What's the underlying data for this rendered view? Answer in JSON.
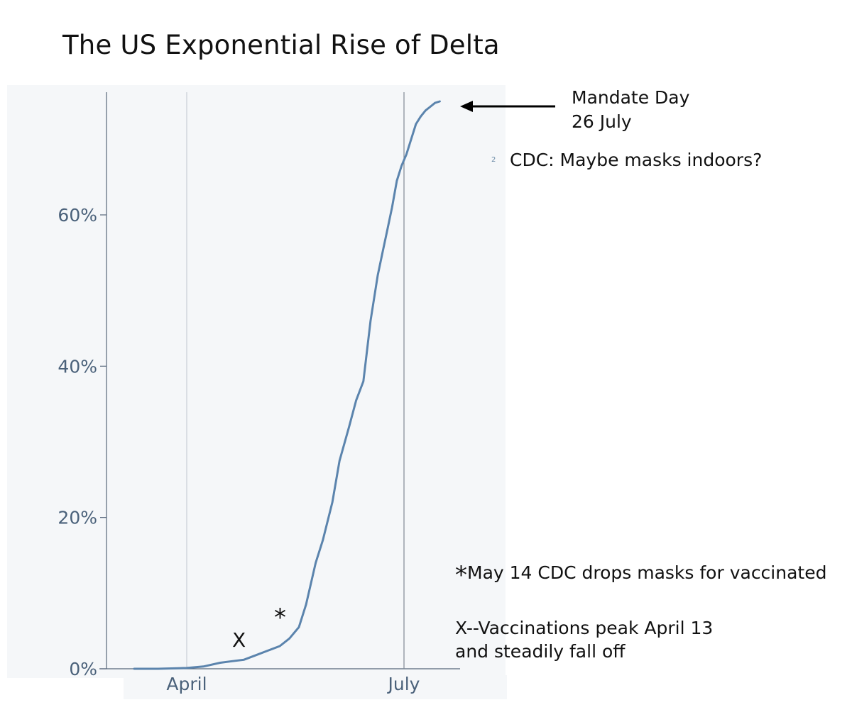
{
  "title": "The US Exponential Rise of Delta",
  "chart_data": {
    "type": "line",
    "title": "The US Exponential Rise of Delta",
    "xlabel": "",
    "ylabel": "",
    "x_tick_labels": [
      "April",
      "July"
    ],
    "x_tick_dates": [
      "2021-04-01",
      "2021-07-01"
    ],
    "y_tick_labels": [
      "0%",
      "20%",
      "40%",
      "60%"
    ],
    "y_ticks": [
      0,
      20,
      40,
      60
    ],
    "ylim": [
      0,
      76
    ],
    "xlim": [
      "2021-03-01",
      "2021-08-01"
    ],
    "grid": "vertical lines at tick months",
    "line_color": "#5b84ad",
    "axis_text_color": "#4a617a",
    "series": [
      {
        "x": [
          "2021-03-10",
          "2021-03-20",
          "2021-04-01",
          "2021-04-08",
          "2021-04-15",
          "2021-04-20",
          "2021-04-25",
          "2021-04-30",
          "2021-05-05",
          "2021-05-10",
          "2021-05-14",
          "2021-05-18",
          "2021-05-21",
          "2021-05-25",
          "2021-05-28",
          "2021-06-01",
          "2021-06-04",
          "2021-06-08",
          "2021-06-11",
          "2021-06-14",
          "2021-06-17",
          "2021-06-20",
          "2021-06-22",
          "2021-06-24",
          "2021-06-26",
          "2021-06-28",
          "2021-06-30",
          "2021-07-02",
          "2021-07-04",
          "2021-07-06",
          "2021-07-08",
          "2021-07-10",
          "2021-07-12",
          "2021-07-14",
          "2021-07-16"
        ],
        "values": [
          0,
          0,
          0.1,
          0.3,
          0.8,
          1.0,
          1.2,
          1.8,
          2.4,
          3.0,
          4.0,
          5.5,
          8.5,
          14.0,
          17.0,
          22.0,
          27.5,
          32.0,
          35.5,
          38.0,
          46.0,
          52.0,
          55.0,
          58.0,
          61.0,
          64.5,
          66.5,
          68.0,
          70.0,
          72.0,
          73.0,
          73.8,
          74.3,
          74.8,
          75.0
        ]
      }
    ],
    "annotations": [
      "X",
      "*"
    ]
  },
  "annotations": {
    "mandate_line1": "Mandate Day",
    "mandate_line2": "26 July",
    "tiny_label": "2",
    "cdc_indoors": "CDC: Maybe masks indoors?",
    "star_symbol": "*",
    "star_note": "May 14 CDC drops masks for vaccinated",
    "x_note_line1": "X--Vaccinations peak April 13",
    "x_note_line2": "and steadily fall off",
    "x_mark": "X",
    "star_mark": "*"
  }
}
